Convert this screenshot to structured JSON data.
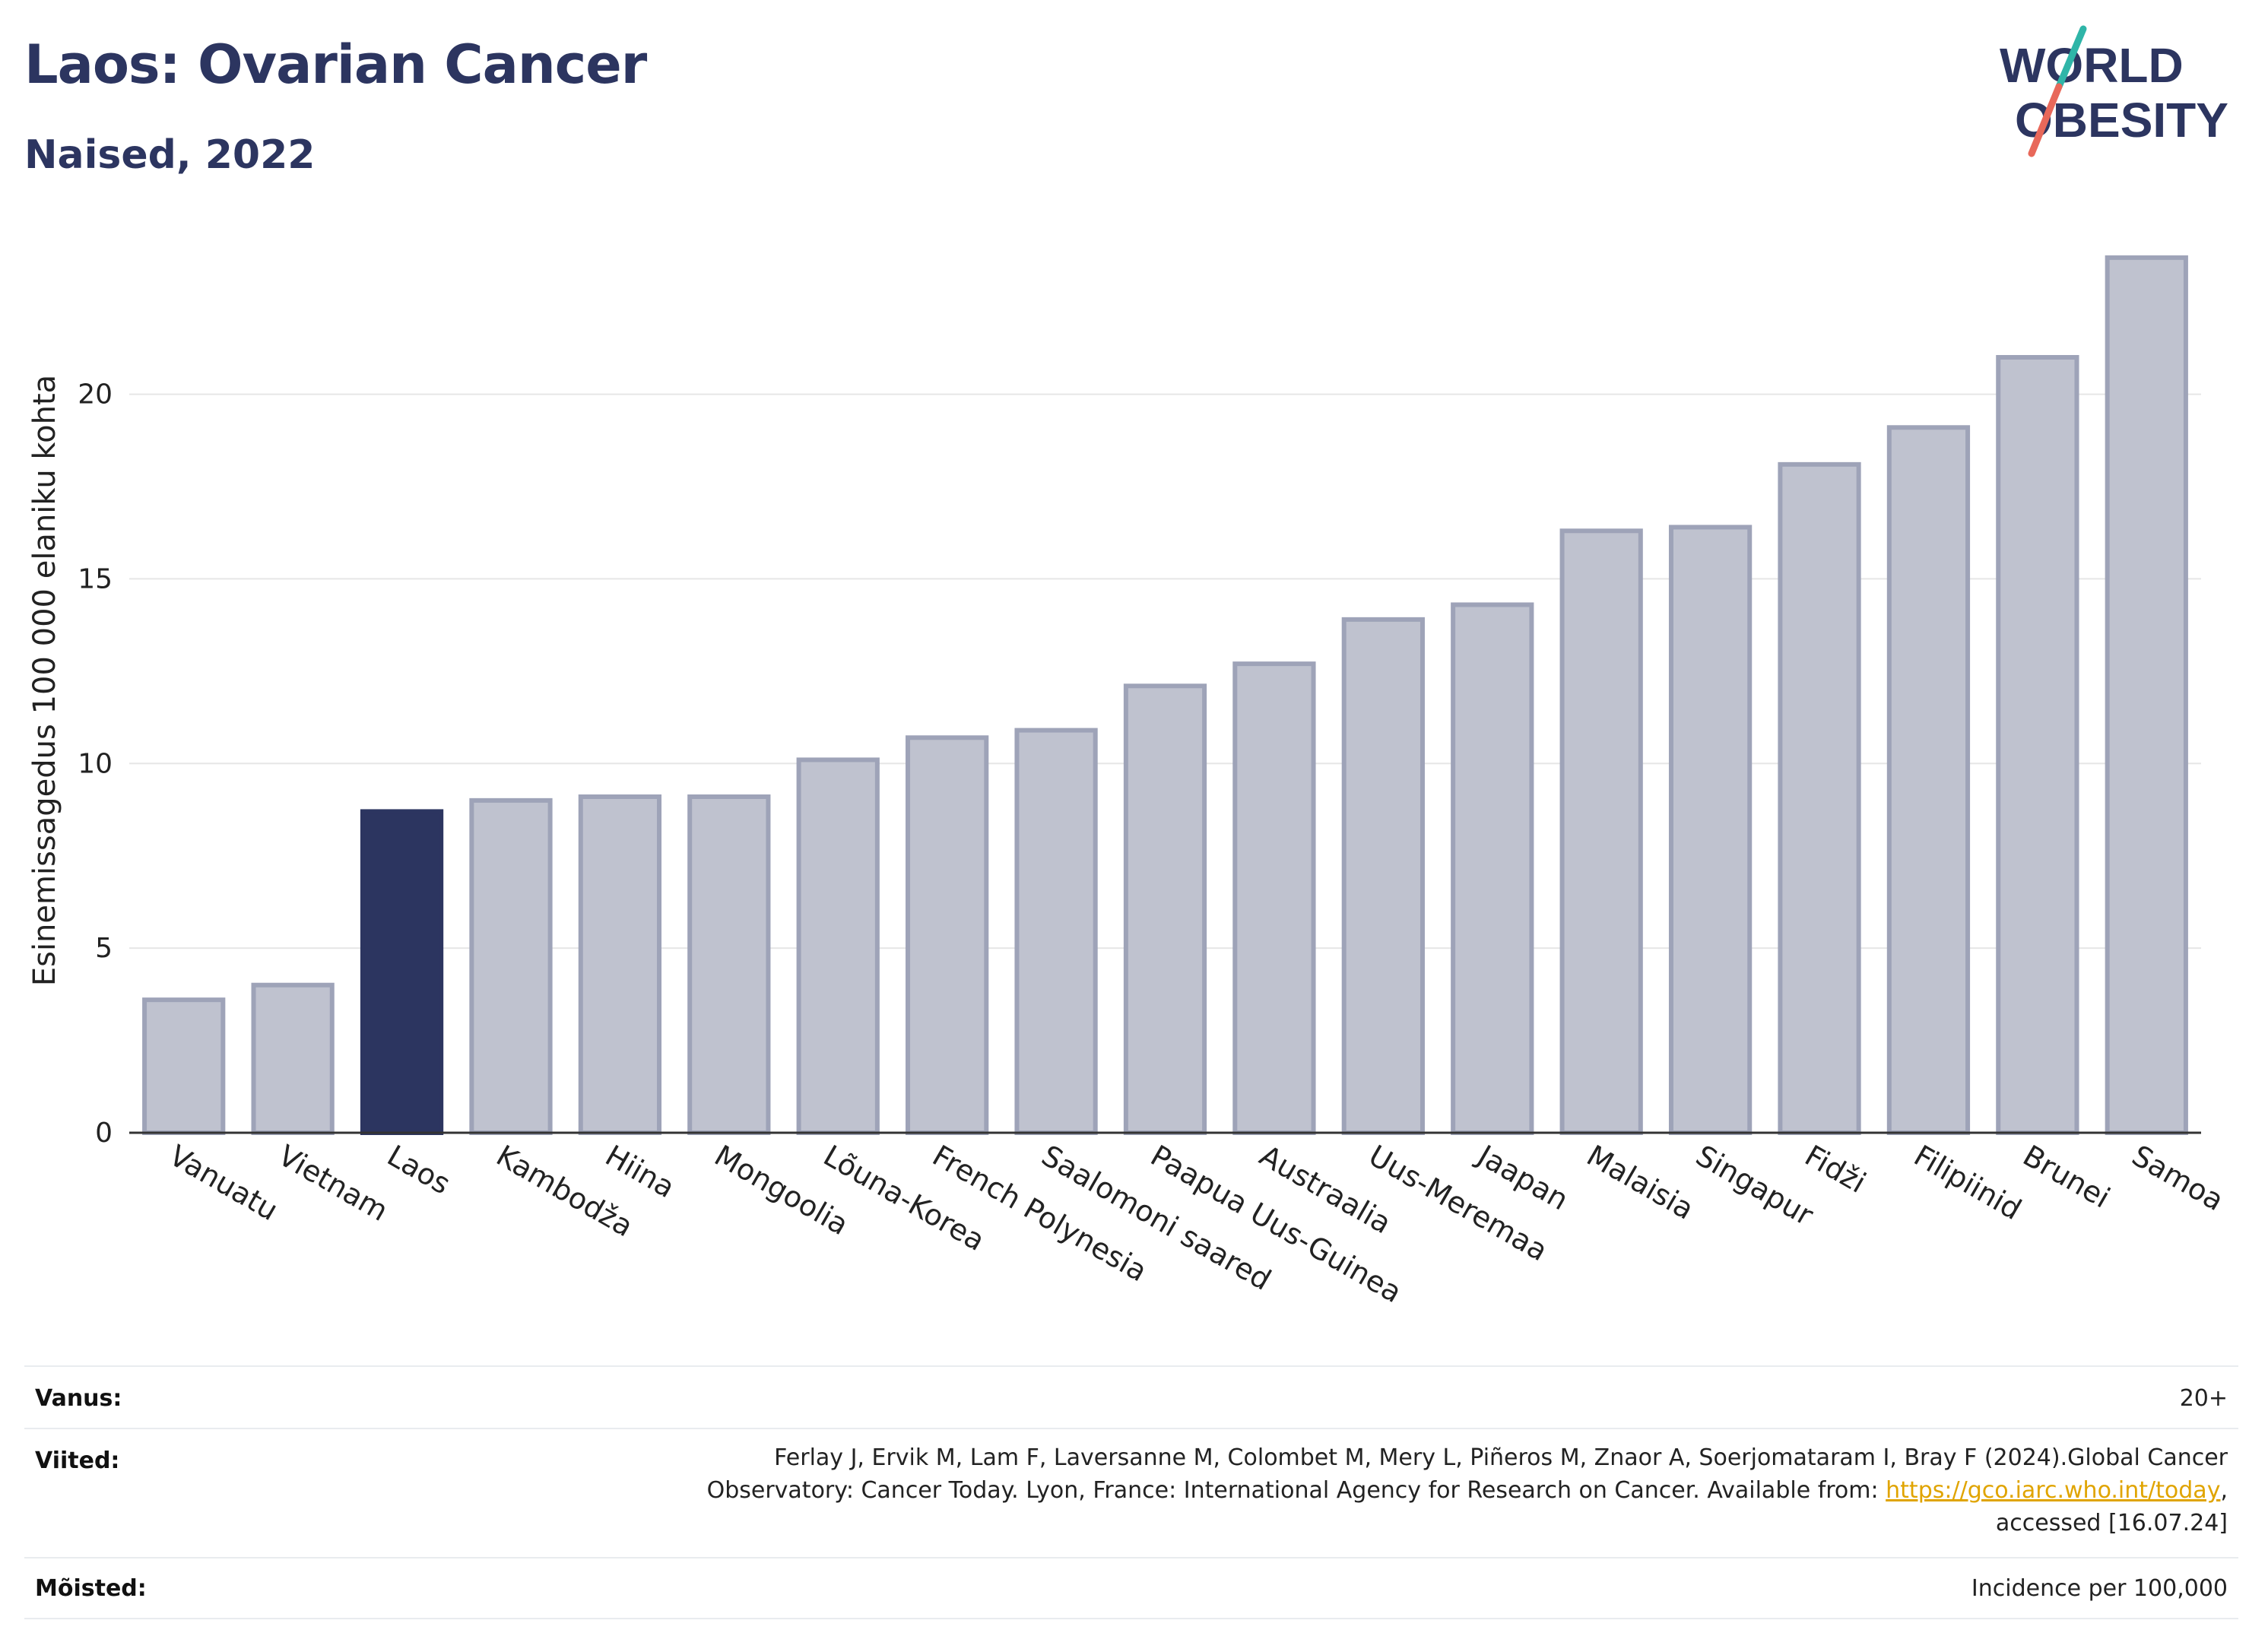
{
  "header": {
    "title": "Laos: Ovarian Cancer",
    "subtitle": "Naised, 2022"
  },
  "logo": {
    "line1": "WORLD",
    "line2": "OBESITY",
    "colors": {
      "text": "#2c3560",
      "slash_top": "#2fb5a8",
      "slash_bottom": "#e8685a"
    }
  },
  "chart_data": {
    "type": "bar",
    "title": "",
    "xlabel": "",
    "ylabel": "Esinemissagedus 100 000 elaniku kohta",
    "ylim": [
      0,
      24.5
    ],
    "yticks": [
      0,
      5,
      10,
      15,
      20
    ],
    "grid": true,
    "categories": [
      "Vanuatu",
      "Vietnam",
      "Laos",
      "Kambodža",
      "Hiina",
      "Mongoolia",
      "Lõuna-Korea",
      "French Polynesia",
      "Saalomoni saared",
      "Paapua Uus-Guinea",
      "Austraalia",
      "Uus-Meremaa",
      "Jaapan",
      "Malaisia",
      "Singapur",
      "Fidži",
      "Filipiinid",
      "Brunei",
      "Samoa"
    ],
    "values": [
      3.6,
      4.0,
      8.7,
      9.0,
      9.1,
      9.1,
      10.1,
      10.7,
      10.9,
      12.1,
      12.7,
      13.9,
      14.3,
      16.3,
      16.4,
      18.1,
      19.1,
      21.0,
      23.7
    ],
    "highlight": "Laos",
    "colors": {
      "bar": "#bfc2cf",
      "bar_edge": "#9ea3b8",
      "highlight": "#2c3560",
      "axis": "#333333",
      "grid": "#e6e6e6"
    }
  },
  "meta": {
    "age_label": "Vanus:",
    "age_value": "20+",
    "refs_label": "Viited:",
    "refs_line1": "Ferlay J, Ervik M, Lam F, Laversanne M, Colombet M, Mery L, Piñeros M, Znaor A, Soerjomataram I, Bray F (2024).Global Cancer",
    "refs_line2_pre": "Observatory: Cancer Today. Lyon, France: International Agency for Research on Cancer. Available from: ",
    "refs_link": "https://gco.iarc.who.int/today",
    "refs_line2_post": ",",
    "refs_line3": "accessed [16.07.24]",
    "definitions_label": "Mõisted:",
    "definitions_value": "Incidence per 100,000"
  }
}
